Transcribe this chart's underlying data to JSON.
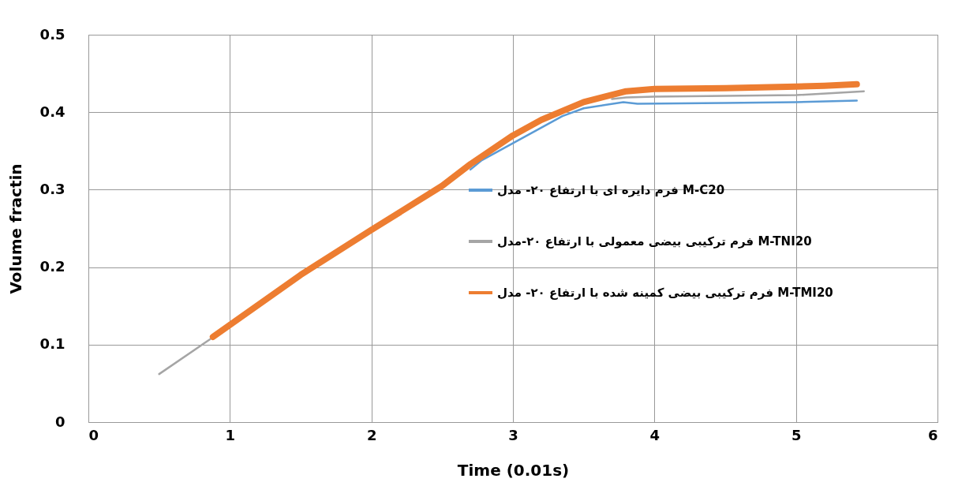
{
  "chart_data": {
    "type": "line",
    "xlabel": "Time (0.01s)",
    "ylabel": "Volume fractin",
    "xlim": [
      0,
      6
    ],
    "xticks": [
      0,
      1,
      2,
      3,
      4,
      5,
      6
    ],
    "ylim": [
      0,
      0.5
    ],
    "yticks": [
      0,
      0.1,
      0.2,
      0.3,
      0.4,
      0.5
    ],
    "grid": true,
    "legend": "right",
    "series": [
      {
        "name": "فرم دایره ای با ارتفاع ۲۰- مدل M-C20",
        "color": "#5b9bd5",
        "x": [
          2.7,
          2.78,
          3.35,
          3.5,
          3.78,
          3.88,
          4.5,
          5,
          5.43
        ],
        "values": [
          0.326,
          0.338,
          0.395,
          0.405,
          0.413,
          0.411,
          0.412,
          0.413,
          0.415
        ]
      },
      {
        "name": "فرم ترکیبی بیضی معمولی با ارتفاع ۲۰-مدل M-TNI20",
        "color": "#a5a5a5",
        "x": [
          0.5,
          0.86,
          2,
          3.7,
          3.8,
          4,
          4.5,
          5,
          5.48
        ],
        "values": [
          0.062,
          0.107,
          null,
          0.417,
          0.419,
          0.42,
          0.421,
          0.422,
          0.427
        ]
      },
      {
        "name": "فرم ترکیبی بیضی کمینه شده با ارتفاع ۲۰- مدل M-TMI20",
        "color": "#ed7d31",
        "x": [
          0.88,
          1.5,
          2,
          2.5,
          2.7,
          3,
          3.2,
          3.5,
          3.8,
          4,
          4.5,
          5,
          5.2,
          5.43
        ],
        "values": [
          0.11,
          0.19,
          0.248,
          0.305,
          0.333,
          0.37,
          0.39,
          0.413,
          0.427,
          0.43,
          0.431,
          0.433,
          0.434,
          0.436
        ]
      }
    ]
  }
}
